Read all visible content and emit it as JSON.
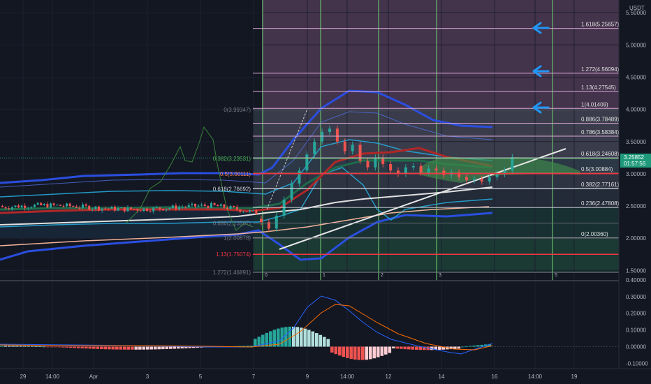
{
  "price_axis": {
    "currency": "USDT",
    "ticks": [
      "5.50000",
      "5.00000",
      "4.50000",
      "4.00000",
      "3.50000",
      "3.00000",
      "2.50000",
      "2.00000",
      "1.50000"
    ],
    "last_price": "3.25852",
    "countdown": "01:57:56"
  },
  "macd_axis": {
    "ticks": [
      "0.40000",
      "0.30000",
      "0.20000",
      "0.10000",
      "0.00000",
      "-0.10000"
    ]
  },
  "time_axis": {
    "labels": [
      "29",
      "14:00",
      "Apr",
      "3",
      "5",
      "7",
      "9",
      "14:00",
      "12",
      "14",
      "16",
      "14:00",
      "19"
    ]
  },
  "time_zones": [
    "0",
    "1",
    "2",
    "3",
    "5"
  ],
  "fib_right": [
    {
      "label": "1.618(5.25657)",
      "price": 5.25657
    },
    {
      "label": "1.272(4.56094)",
      "price": 4.56094
    },
    {
      "label": "1.13(4.27545)",
      "price": 4.27545
    },
    {
      "label": "1(4.01409)",
      "price": 4.01409
    },
    {
      "label": "0.886(3.78489)",
      "price": 3.78489
    },
    {
      "label": "0.786(3.58384)",
      "price": 3.58384
    },
    {
      "label": "0.618(3.24608)",
      "price": 3.24608
    },
    {
      "label": "0.5(3.00884)",
      "price": 3.00884
    },
    {
      "label": "0.382(2.77161)",
      "price": 2.77161
    },
    {
      "label": "0.236(2.47808)",
      "price": 2.47808
    },
    {
      "label": "0(2.00360)",
      "price": 2.0036
    }
  ],
  "fib_left": [
    {
      "label": "0(3.99347)",
      "price": 3.99347,
      "color": "#787b86"
    },
    {
      "label": "0.382(3.23531)",
      "price": 3.23531,
      "color": "#4caf50"
    },
    {
      "label": "0.5(3.00111)",
      "price": 3.00111,
      "color": "#f57f4f"
    },
    {
      "label": "0.618(2.76692)",
      "price": 2.76692,
      "color": "#d1d4dc"
    },
    {
      "label": "0.886(2.23507)",
      "price": 2.23507,
      "color": "#787b86"
    },
    {
      "label": "1(2.00878)",
      "price": 2.00878,
      "color": "#787b86"
    },
    {
      "label": "1.13(1.75074)",
      "price": 1.75074,
      "color": "#f23645"
    },
    {
      "label": "1.272(1.46891)",
      "price": 1.46891,
      "color": "#787b86"
    }
  ],
  "colors": {
    "background": "#131722",
    "up": "#26a69a",
    "down": "#ef5350",
    "bollinger": "#1e4bd8",
    "arrow": "#2196f3",
    "timezone_line": "#66bb6a"
  },
  "chart_data": [
    {
      "type": "candlestick",
      "title": "",
      "ylim": [
        1.4,
        5.55
      ],
      "x_labels": [
        "29",
        "14:00",
        "Apr",
        "3",
        "5",
        "7",
        "9",
        "14:00",
        "12",
        "14",
        "16",
        "14:00",
        "19"
      ],
      "close_approx": [
        2.55,
        2.5,
        2.52,
        2.5,
        2.48,
        2.52,
        2.5,
        2.46,
        2.5,
        2.48,
        2.45,
        2.4,
        2.3,
        2.2,
        2.45,
        2.9,
        3.4,
        3.65,
        3.5,
        3.3,
        3.15,
        3.1,
        3.08,
        3.05,
        3.02,
        3.0,
        2.98,
        2.95,
        2.9,
        3.05,
        3.25852
      ]
    },
    {
      "type": "bar",
      "title": "",
      "ylim": [
        -0.12,
        0.4
      ],
      "histogram_approx": [
        0.02,
        0.015,
        0.01,
        0.005,
        0.0,
        -0.005,
        -0.01,
        -0.005,
        0.0,
        0.02,
        0.06,
        0.1,
        0.12,
        0.11,
        0.08,
        0.04,
        0.0,
        -0.03,
        -0.05,
        -0.04,
        -0.02,
        -0.01,
        0.0,
        0.015,
        0.03
      ],
      "macd_line_approx": [
        0.02,
        0.01,
        0.0,
        -0.005,
        -0.01,
        -0.01,
        0.0,
        0.05,
        0.15,
        0.27,
        0.31,
        0.25,
        0.15,
        0.08,
        0.03,
        0.0,
        -0.02,
        -0.04,
        -0.06,
        -0.03,
        0.0,
        0.02
      ],
      "signal_line_approx": [
        0.02,
        0.015,
        0.01,
        0.0,
        -0.005,
        -0.008,
        -0.005,
        0.01,
        0.06,
        0.15,
        0.23,
        0.26,
        0.22,
        0.15,
        0.09,
        0.05,
        0.02,
        0.0,
        -0.02,
        -0.03,
        -0.02,
        0.0
      ]
    }
  ]
}
